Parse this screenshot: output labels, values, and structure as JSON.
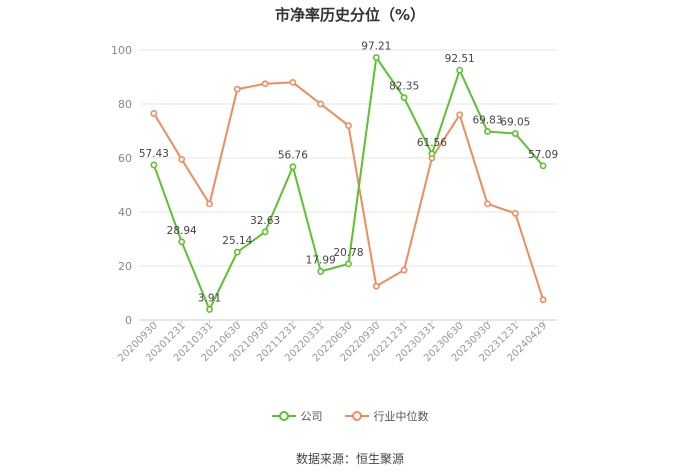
{
  "chart_data": {
    "type": "line",
    "title": "市净率历史分位（%）",
    "ylim": [
      0,
      100
    ],
    "yticks": [
      0,
      20,
      40,
      60,
      80,
      100
    ],
    "categories": [
      "20200930",
      "20201231",
      "20210331",
      "20210630",
      "20210930",
      "20211231",
      "20220331",
      "20220630",
      "20220930",
      "20221231",
      "20230331",
      "20230630",
      "20230930",
      "20231231",
      "20240429"
    ],
    "series": [
      {
        "name": "公司",
        "color": "#5cc22e",
        "values": [
          57.43,
          28.94,
          3.91,
          25.14,
          32.63,
          56.76,
          17.99,
          20.78,
          97.21,
          82.35,
          61.56,
          92.51,
          69.83,
          69.05,
          57.09
        ],
        "labels": [
          "57.43",
          "28.94",
          "3.91",
          "25.14",
          "32.63",
          "56.76",
          "17.99",
          "20.78",
          "97.21",
          "82.35",
          "61.56",
          "92.51",
          "69.83",
          "69.05",
          "57.09"
        ]
      },
      {
        "name": "行业中位数",
        "color": "#f28b5b",
        "values": [
          76.5,
          59.5,
          43.0,
          85.5,
          87.5,
          88.0,
          80.0,
          72.0,
          12.5,
          18.5,
          60.0,
          76.0,
          43.0,
          39.5,
          7.5
        ]
      }
    ],
    "legend_position": "bottom",
    "grid": true
  },
  "source": "数据来源：恒生聚源"
}
